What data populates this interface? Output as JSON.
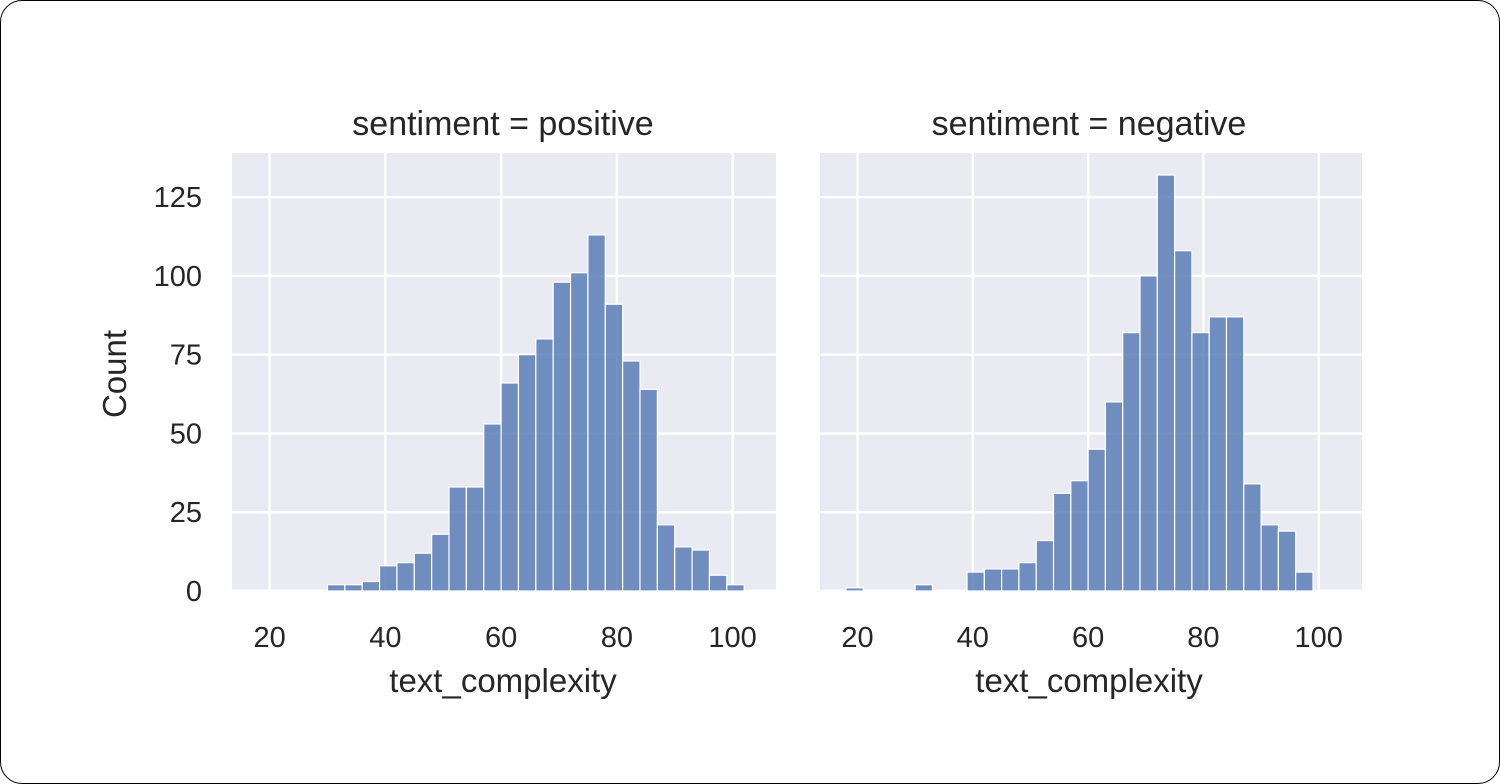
{
  "chart_data": {
    "type": "bar",
    "ylabel": "Count",
    "xlabel": "text_complexity",
    "ylim": [
      0,
      139
    ],
    "xlim": [
      13.5,
      107.5
    ],
    "yticks": [
      0,
      25,
      50,
      75,
      100,
      125
    ],
    "xticks": [
      20,
      40,
      60,
      80,
      100
    ],
    "grid": true,
    "bin_width": 3,
    "bar_color": "#4c72b0",
    "panel_background": "#eaeaf2",
    "panels": [
      {
        "title": "sentiment = positive",
        "bins": [
          {
            "x0": 30,
            "count": 2
          },
          {
            "x0": 33,
            "count": 2
          },
          {
            "x0": 36,
            "count": 3
          },
          {
            "x0": 39,
            "count": 8
          },
          {
            "x0": 42,
            "count": 9
          },
          {
            "x0": 45,
            "count": 12
          },
          {
            "x0": 48,
            "count": 18
          },
          {
            "x0": 51,
            "count": 33
          },
          {
            "x0": 54,
            "count": 33
          },
          {
            "x0": 57,
            "count": 53
          },
          {
            "x0": 60,
            "count": 66
          },
          {
            "x0": 63,
            "count": 75
          },
          {
            "x0": 66,
            "count": 80
          },
          {
            "x0": 69,
            "count": 98
          },
          {
            "x0": 72,
            "count": 101
          },
          {
            "x0": 75,
            "count": 113
          },
          {
            "x0": 78,
            "count": 91
          },
          {
            "x0": 81,
            "count": 73
          },
          {
            "x0": 84,
            "count": 64
          },
          {
            "x0": 87,
            "count": 21
          },
          {
            "x0": 90,
            "count": 14
          },
          {
            "x0": 93,
            "count": 13
          },
          {
            "x0": 96,
            "count": 5
          },
          {
            "x0": 99,
            "count": 2
          }
        ]
      },
      {
        "title": "sentiment = negative",
        "bins": [
          {
            "x0": 18,
            "count": 1
          },
          {
            "x0": 30,
            "count": 2
          },
          {
            "x0": 39,
            "count": 6
          },
          {
            "x0": 42,
            "count": 7
          },
          {
            "x0": 45,
            "count": 7
          },
          {
            "x0": 48,
            "count": 9
          },
          {
            "x0": 51,
            "count": 16
          },
          {
            "x0": 54,
            "count": 31
          },
          {
            "x0": 57,
            "count": 35
          },
          {
            "x0": 60,
            "count": 45
          },
          {
            "x0": 63,
            "count": 60
          },
          {
            "x0": 66,
            "count": 82
          },
          {
            "x0": 69,
            "count": 100
          },
          {
            "x0": 72,
            "count": 132
          },
          {
            "x0": 75,
            "count": 108
          },
          {
            "x0": 78,
            "count": 82
          },
          {
            "x0": 81,
            "count": 87
          },
          {
            "x0": 84,
            "count": 87
          },
          {
            "x0": 87,
            "count": 34
          },
          {
            "x0": 90,
            "count": 21
          },
          {
            "x0": 93,
            "count": 19
          },
          {
            "x0": 96,
            "count": 6
          }
        ]
      }
    ]
  }
}
